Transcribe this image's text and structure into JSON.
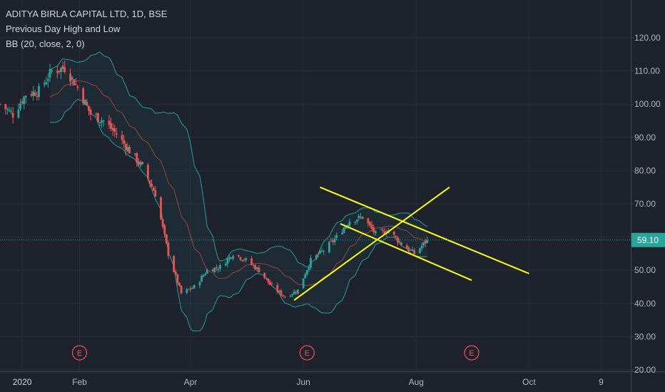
{
  "legend": {
    "title": "ADITYA BIRLA CAPITAL LTD, 1D, BSE",
    "indicator1": "Previous Day High and Low",
    "indicator2": "BB (20, close, 2, 0)"
  },
  "colors": {
    "background": "#1e222d",
    "up": "#26a69a",
    "down": "#ef5350",
    "basis": "#ef5350",
    "band": "#26a69a",
    "trendline": "#ffff00",
    "price_tag": "#26a69a",
    "grid": "#2a2e39"
  },
  "chart_data": {
    "type": "candlestick",
    "title": "ADITYA BIRLA CAPITAL LTD, 1D, BSE",
    "indicators": [
      "Previous Day High and Low",
      "BB (20, close, 2, 0)"
    ],
    "ylim": [
      20,
      125
    ],
    "y_ticks": [
      "20.00",
      "30.00",
      "40.00",
      "50.00",
      "60.00",
      "70.00",
      "80.00",
      "90.00",
      "100.00",
      "110.00",
      "120.00"
    ],
    "x_ticks": [
      "2020",
      "Feb",
      "Apr",
      "Jun",
      "Aug",
      "Oct",
      "9"
    ],
    "x_tick_dates": [
      "2020-01-01",
      "2020-02-01",
      "2020-04-01",
      "2020-06-01",
      "2020-08-01",
      "2020-10-01",
      "2020-11-09"
    ],
    "xlim": [
      "2019-12-20",
      "2020-11-25"
    ],
    "last_price": "59.10",
    "grid": true,
    "earnings_markers": [
      {
        "date": "2020-02-01",
        "label": "E"
      },
      {
        "date": "2020-06-03",
        "label": "E"
      },
      {
        "date": "2020-08-31",
        "label": "E"
      }
    ],
    "close_series": [
      {
        "date": "2019-12-20",
        "close": 100
      },
      {
        "date": "2019-12-27",
        "close": 97
      },
      {
        "date": "2020-01-03",
        "close": 103
      },
      {
        "date": "2020-01-10",
        "close": 104
      },
      {
        "date": "2020-01-17",
        "close": 110
      },
      {
        "date": "2020-01-24",
        "close": 111
      },
      {
        "date": "2020-01-31",
        "close": 105
      },
      {
        "date": "2020-02-07",
        "close": 97
      },
      {
        "date": "2020-02-14",
        "close": 95
      },
      {
        "date": "2020-02-21",
        "close": 91
      },
      {
        "date": "2020-02-28",
        "close": 86
      },
      {
        "date": "2020-03-06",
        "close": 81
      },
      {
        "date": "2020-03-13",
        "close": 73
      },
      {
        "date": "2020-03-20",
        "close": 55
      },
      {
        "date": "2020-03-27",
        "close": 43
      },
      {
        "date": "2020-04-03",
        "close": 45
      },
      {
        "date": "2020-04-10",
        "close": 50
      },
      {
        "date": "2020-04-17",
        "close": 51
      },
      {
        "date": "2020-04-24",
        "close": 55
      },
      {
        "date": "2020-05-01",
        "close": 53
      },
      {
        "date": "2020-05-08",
        "close": 50
      },
      {
        "date": "2020-05-15",
        "close": 45
      },
      {
        "date": "2020-05-22",
        "close": 42
      },
      {
        "date": "2020-05-29",
        "close": 44
      },
      {
        "date": "2020-06-05",
        "close": 53
      },
      {
        "date": "2020-06-12",
        "close": 56
      },
      {
        "date": "2020-06-19",
        "close": 60
      },
      {
        "date": "2020-06-26",
        "close": 65
      },
      {
        "date": "2020-07-03",
        "close": 66
      },
      {
        "date": "2020-07-10",
        "close": 61
      },
      {
        "date": "2020-07-17",
        "close": 62
      },
      {
        "date": "2020-07-24",
        "close": 58
      },
      {
        "date": "2020-07-31",
        "close": 55
      },
      {
        "date": "2020-08-07",
        "close": 59.1
      }
    ],
    "trendlines": [
      {
        "from": {
          "date": "2020-06-10",
          "value": 75
        },
        "to": {
          "date": "2020-10-01",
          "value": 49
        }
      },
      {
        "from": {
          "date": "2020-06-21",
          "value": 64
        },
        "to": {
          "date": "2020-08-31",
          "value": 47
        }
      },
      {
        "from": {
          "date": "2020-05-27",
          "value": 41
        },
        "to": {
          "date": "2020-08-19",
          "value": 75
        }
      }
    ]
  }
}
